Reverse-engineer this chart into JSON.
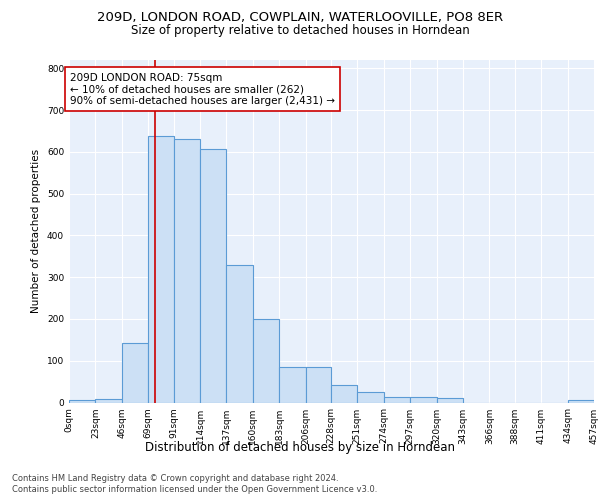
{
  "title1": "209D, LONDON ROAD, COWPLAIN, WATERLOOVILLE, PO8 8ER",
  "title2": "Size of property relative to detached houses in Horndean",
  "xlabel": "Distribution of detached houses by size in Horndean",
  "ylabel": "Number of detached properties",
  "footer1": "Contains HM Land Registry data © Crown copyright and database right 2024.",
  "footer2": "Contains public sector information licensed under the Open Government Licence v3.0.",
  "bin_edges": [
    0,
    23,
    46,
    69,
    91,
    114,
    137,
    160,
    183,
    206,
    228,
    251,
    274,
    297,
    320,
    343,
    366,
    388,
    411,
    434,
    457
  ],
  "bar_heights": [
    5,
    8,
    143,
    638,
    630,
    608,
    330,
    200,
    85,
    85,
    42,
    25,
    12,
    12,
    10,
    0,
    0,
    0,
    0,
    5
  ],
  "bar_facecolor": "#cce0f5",
  "bar_edgecolor": "#5b9bd5",
  "bar_linewidth": 0.8,
  "vline_x": 75,
  "vline_color": "#cc0000",
  "vline_linewidth": 1.2,
  "annotation_text": "209D LONDON ROAD: 75sqm\n← 10% of detached houses are smaller (262)\n90% of semi-detached houses are larger (2,431) →",
  "annotation_box_edgecolor": "#cc0000",
  "annotation_box_facecolor": "#ffffff",
  "ylim": [
    0,
    820
  ],
  "yticks": [
    0,
    100,
    200,
    300,
    400,
    500,
    600,
    700,
    800
  ],
  "axes_bg_color": "#e8f0fb",
  "grid_color": "#ffffff",
  "title1_fontsize": 9.5,
  "title2_fontsize": 8.5,
  "xlabel_fontsize": 8.5,
  "ylabel_fontsize": 7.5,
  "tick_fontsize": 6.5,
  "annotation_fontsize": 7.5,
  "footer_fontsize": 6.0
}
